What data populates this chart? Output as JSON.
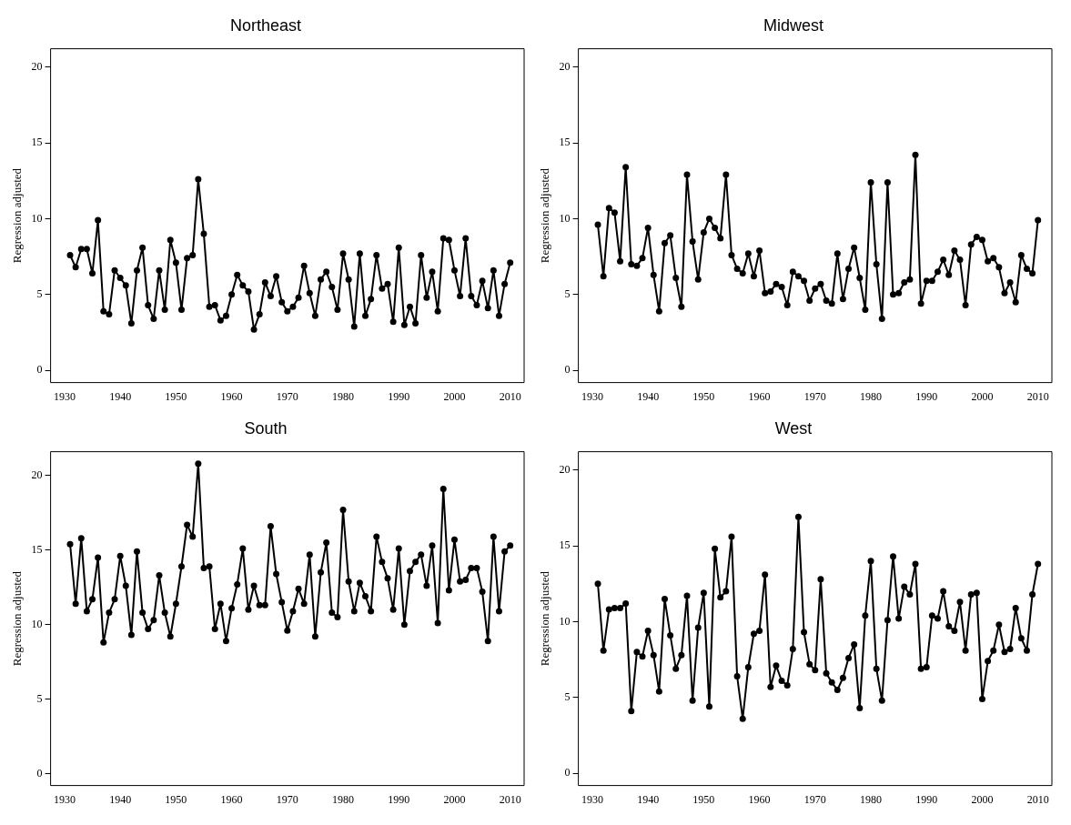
{
  "chart_data": [
    {
      "type": "line",
      "title": "Northeast",
      "ylabel": "Regression adjusted",
      "marker": "circle",
      "xlim": [
        1927.5,
        2012.5
      ],
      "ylim": [
        -0.8,
        21.2
      ],
      "xticks": [
        1930,
        1940,
        1950,
        1960,
        1970,
        1980,
        1990,
        2000,
        2010
      ],
      "yticks": [
        0,
        5,
        10,
        15,
        20
      ],
      "series": [
        {
          "color": "#000000",
          "x": [
            1931,
            1932,
            1933,
            1934,
            1935,
            1936,
            1937,
            1938,
            1939,
            1940,
            1941,
            1942,
            1943,
            1944,
            1945,
            1946,
            1947,
            1948,
            1949,
            1950,
            1951,
            1952,
            1953,
            1954,
            1955,
            1956,
            1957,
            1958,
            1959,
            1960,
            1961,
            1962,
            1963,
            1964,
            1965,
            1966,
            1967,
            1968,
            1969,
            1970,
            1971,
            1972,
            1973,
            1974,
            1975,
            1976,
            1977,
            1978,
            1979,
            1980,
            1981,
            1982,
            1983,
            1984,
            1985,
            1986,
            1987,
            1988,
            1989,
            1990,
            1991,
            1992,
            1993,
            1994,
            1995,
            1996,
            1997,
            1998,
            1999,
            2000,
            2001,
            2002,
            2003,
            2004,
            2005,
            2006,
            2007,
            2008,
            2009,
            2010
          ],
          "values": [
            7.6,
            6.8,
            8.0,
            8.0,
            6.4,
            9.9,
            3.9,
            3.7,
            6.6,
            6.1,
            5.6,
            3.1,
            6.6,
            8.1,
            4.3,
            3.4,
            6.6,
            4.0,
            8.6,
            7.1,
            4.0,
            7.4,
            7.6,
            12.6,
            9.0,
            4.2,
            4.3,
            3.3,
            3.6,
            5.0,
            6.3,
            5.6,
            5.2,
            2.7,
            3.7,
            5.8,
            4.9,
            6.2,
            4.5,
            3.9,
            4.2,
            4.8,
            6.9,
            5.1,
            3.6,
            6.0,
            6.5,
            5.5,
            4.0,
            7.7,
            6.0,
            2.9,
            7.7,
            3.6,
            4.7,
            7.6,
            5.4,
            5.7,
            3.2,
            8.1,
            3.0,
            4.2,
            3.1,
            7.6,
            4.8,
            6.5,
            3.9,
            8.7,
            8.6,
            6.6,
            4.9,
            8.7,
            4.9,
            4.3,
            5.9,
            4.1,
            6.6,
            3.6,
            5.7,
            7.1
          ]
        }
      ]
    },
    {
      "type": "line",
      "title": "Midwest",
      "ylabel": "Regression adjusted",
      "marker": "circle",
      "xlim": [
        1927.5,
        2012.5
      ],
      "ylim": [
        -0.8,
        21.2
      ],
      "xticks": [
        1930,
        1940,
        1950,
        1960,
        1970,
        1980,
        1990,
        2000,
        2010
      ],
      "yticks": [
        0,
        5,
        10,
        15,
        20
      ],
      "series": [
        {
          "color": "#000000",
          "x": [
            1931,
            1932,
            1933,
            1934,
            1935,
            1936,
            1937,
            1938,
            1939,
            1940,
            1941,
            1942,
            1943,
            1944,
            1945,
            1946,
            1947,
            1948,
            1949,
            1950,
            1951,
            1952,
            1953,
            1954,
            1955,
            1956,
            1957,
            1958,
            1959,
            1960,
            1961,
            1962,
            1963,
            1964,
            1965,
            1966,
            1967,
            1968,
            1969,
            1970,
            1971,
            1972,
            1973,
            1974,
            1975,
            1976,
            1977,
            1978,
            1979,
            1980,
            1981,
            1982,
            1983,
            1984,
            1985,
            1986,
            1987,
            1988,
            1989,
            1990,
            1991,
            1992,
            1993,
            1994,
            1995,
            1996,
            1997,
            1998,
            1999,
            2000,
            2001,
            2002,
            2003,
            2004,
            2005,
            2006,
            2007,
            2008,
            2009,
            2010
          ],
          "values": [
            9.6,
            6.2,
            10.7,
            10.4,
            7.2,
            13.4,
            7.0,
            6.9,
            7.4,
            9.4,
            6.3,
            3.9,
            8.4,
            8.9,
            6.1,
            4.2,
            12.9,
            8.5,
            6.0,
            9.1,
            10.0,
            9.4,
            8.7,
            12.9,
            7.6,
            6.7,
            6.4,
            7.7,
            6.2,
            7.9,
            5.1,
            5.2,
            5.7,
            5.5,
            4.3,
            6.5,
            6.2,
            5.9,
            4.6,
            5.4,
            5.7,
            4.6,
            4.4,
            7.7,
            4.7,
            6.7,
            8.1,
            6.1,
            4.0,
            12.4,
            7.0,
            3.4,
            12.4,
            5.0,
            5.1,
            5.8,
            6.0,
            14.2,
            4.4,
            5.9,
            5.9,
            6.5,
            7.3,
            6.3,
            7.9,
            7.3,
            4.3,
            8.3,
            8.8,
            8.6,
            7.2,
            7.4,
            6.8,
            5.1,
            5.8,
            4.5,
            7.6,
            6.7,
            6.4,
            9.9
          ]
        }
      ]
    },
    {
      "type": "line",
      "title": "South",
      "ylabel": "Regression adjusted",
      "marker": "circle",
      "xlim": [
        1927.5,
        2012.5
      ],
      "ylim": [
        -0.8,
        21.6
      ],
      "xticks": [
        1930,
        1940,
        1950,
        1960,
        1970,
        1980,
        1990,
        2000,
        2010
      ],
      "yticks": [
        0,
        5,
        10,
        15,
        20
      ],
      "series": [
        {
          "color": "#000000",
          "x": [
            1931,
            1932,
            1933,
            1934,
            1935,
            1936,
            1937,
            1938,
            1939,
            1940,
            1941,
            1942,
            1943,
            1944,
            1945,
            1946,
            1947,
            1948,
            1949,
            1950,
            1951,
            1952,
            1953,
            1954,
            1955,
            1956,
            1957,
            1958,
            1959,
            1960,
            1961,
            1962,
            1963,
            1964,
            1965,
            1966,
            1967,
            1968,
            1969,
            1970,
            1971,
            1972,
            1973,
            1974,
            1975,
            1976,
            1977,
            1978,
            1979,
            1980,
            1981,
            1982,
            1983,
            1984,
            1985,
            1986,
            1987,
            1988,
            1989,
            1990,
            1991,
            1992,
            1993,
            1994,
            1995,
            1996,
            1997,
            1998,
            1999,
            2000,
            2001,
            2002,
            2003,
            2004,
            2005,
            2006,
            2007,
            2008,
            2009,
            2010
          ],
          "values": [
            15.4,
            11.4,
            15.8,
            10.9,
            11.7,
            14.5,
            8.8,
            10.8,
            11.7,
            14.6,
            12.6,
            9.3,
            14.9,
            10.8,
            9.7,
            10.3,
            13.3,
            10.8,
            9.2,
            11.4,
            13.9,
            16.7,
            15.9,
            20.8,
            13.8,
            13.9,
            9.7,
            11.4,
            8.9,
            11.1,
            12.7,
            15.1,
            11.0,
            12.6,
            11.3,
            11.3,
            16.6,
            13.4,
            11.5,
            9.6,
            10.9,
            12.4,
            11.4,
            14.7,
            9.2,
            13.5,
            15.5,
            10.8,
            10.5,
            17.7,
            12.9,
            10.9,
            12.8,
            11.9,
            10.9,
            15.9,
            14.2,
            13.1,
            11.0,
            15.1,
            10.0,
            13.6,
            14.2,
            14.7,
            12.6,
            15.3,
            10.1,
            19.1,
            12.3,
            15.7,
            12.9,
            13.0,
            13.8,
            13.8,
            12.2,
            8.9,
            15.9,
            10.9,
            14.9,
            15.3
          ]
        }
      ]
    },
    {
      "type": "line",
      "title": "West",
      "ylabel": "Regression adjusted",
      "marker": "circle",
      "xlim": [
        1927.5,
        2012.5
      ],
      "ylim": [
        -0.8,
        21.2
      ],
      "xticks": [
        1930,
        1940,
        1950,
        1960,
        1970,
        1980,
        1990,
        2000,
        2010
      ],
      "yticks": [
        0,
        5,
        10,
        15,
        20
      ],
      "series": [
        {
          "color": "#000000",
          "x": [
            1931,
            1932,
            1933,
            1934,
            1935,
            1936,
            1937,
            1938,
            1939,
            1940,
            1941,
            1942,
            1943,
            1944,
            1945,
            1946,
            1947,
            1948,
            1949,
            1950,
            1951,
            1952,
            1953,
            1954,
            1955,
            1956,
            1957,
            1958,
            1959,
            1960,
            1961,
            1962,
            1963,
            1964,
            1965,
            1966,
            1967,
            1968,
            1969,
            1970,
            1971,
            1972,
            1973,
            1974,
            1975,
            1976,
            1977,
            1978,
            1979,
            1980,
            1981,
            1982,
            1983,
            1984,
            1985,
            1986,
            1987,
            1988,
            1989,
            1990,
            1991,
            1992,
            1993,
            1994,
            1995,
            1996,
            1997,
            1998,
            1999,
            2000,
            2001,
            2002,
            2003,
            2004,
            2005,
            2006,
            2007,
            2008,
            2009,
            2010
          ],
          "values": [
            12.5,
            8.1,
            10.8,
            10.9,
            10.9,
            11.2,
            4.1,
            8.0,
            7.7,
            9.4,
            7.8,
            5.4,
            11.5,
            9.1,
            6.9,
            7.8,
            11.7,
            4.8,
            9.6,
            11.9,
            4.4,
            14.8,
            11.6,
            12.0,
            15.6,
            6.4,
            3.6,
            7.0,
            9.2,
            9.4,
            13.1,
            5.7,
            7.1,
            6.1,
            5.8,
            8.2,
            16.9,
            9.3,
            7.2,
            6.8,
            12.8,
            6.6,
            6.0,
            5.5,
            6.3,
            7.6,
            8.5,
            4.3,
            10.4,
            14.0,
            6.9,
            4.8,
            10.1,
            14.3,
            10.2,
            12.3,
            11.8,
            13.8,
            6.9,
            7.0,
            10.4,
            10.2,
            12.0,
            9.7,
            9.4,
            11.3,
            8.1,
            11.8,
            11.9,
            4.9,
            7.4,
            8.1,
            9.8,
            8.0,
            8.2,
            10.9,
            8.9,
            8.1,
            11.8,
            13.8
          ]
        }
      ]
    }
  ]
}
